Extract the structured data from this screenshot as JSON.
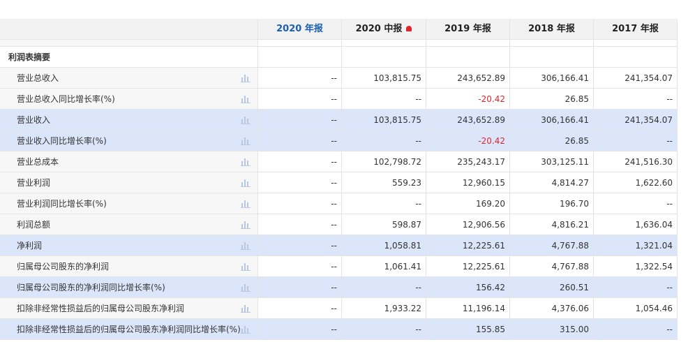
{
  "header": {
    "columns": [
      "2020 年报",
      "2020 中报",
      "2019 年报",
      "2018 年报",
      "2017 年报"
    ]
  },
  "table": {
    "section": "利润表摘要",
    "rows": [
      {
        "label": "营业总收入",
        "highlight": false,
        "values": [
          "--",
          "103,815.75",
          "243,652.89",
          "306,166.41",
          "241,354.07"
        ]
      },
      {
        "label": "营业总收入同比增长率(%)",
        "highlight": false,
        "values": [
          "--",
          "--",
          "-20.42",
          "26.85",
          "--"
        ]
      },
      {
        "label": "营业收入",
        "highlight": true,
        "values": [
          "--",
          "103,815.75",
          "243,652.89",
          "306,166.41",
          "241,354.07"
        ]
      },
      {
        "label": "营业收入同比增长率(%)",
        "highlight": true,
        "values": [
          "--",
          "--",
          "-20.42",
          "26.85",
          "--"
        ]
      },
      {
        "label": "营业总成本",
        "highlight": false,
        "values": [
          "--",
          "102,798.72",
          "235,243.17",
          "303,125.11",
          "241,516.30"
        ]
      },
      {
        "label": "营业利润",
        "highlight": false,
        "values": [
          "--",
          "559.23",
          "12,960.15",
          "4,814.27",
          "1,622.60"
        ]
      },
      {
        "label": "营业利润同比增长率(%)",
        "highlight": false,
        "values": [
          "--",
          "--",
          "169.20",
          "196.70",
          "--"
        ]
      },
      {
        "label": "利润总额",
        "highlight": false,
        "values": [
          "--",
          "598.87",
          "12,906.56",
          "4,816.21",
          "1,636.04"
        ]
      },
      {
        "label": "净利润",
        "highlight": true,
        "values": [
          "--",
          "1,058.81",
          "12,225.61",
          "4,767.88",
          "1,321.04"
        ]
      },
      {
        "label": "归属母公司股东的净利润",
        "highlight": false,
        "values": [
          "--",
          "1,061.41",
          "12,225.61",
          "4,767.88",
          "1,322.54"
        ]
      },
      {
        "label": "归属母公司股东的净利润同比增长率(%)",
        "highlight": true,
        "values": [
          "--",
          "--",
          "156.42",
          "260.51",
          "--"
        ]
      },
      {
        "label": "扣除非经常性损益后的归属母公司股东净利润",
        "highlight": false,
        "values": [
          "--",
          "1,933.22",
          "11,196.14",
          "4,376.06",
          "1,054.46"
        ]
      },
      {
        "label": "扣除非经常性损益后的归属母公司股东净利润同比增长率(%)",
        "highlight": true,
        "values": [
          "--",
          "--",
          "155.85",
          "315.00",
          "--"
        ]
      }
    ]
  }
}
